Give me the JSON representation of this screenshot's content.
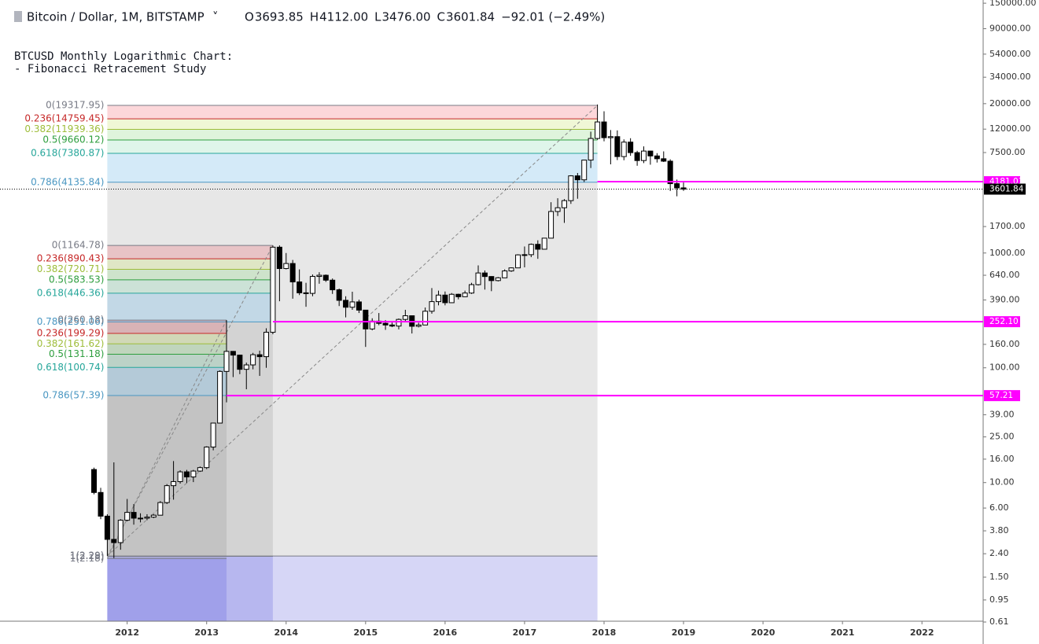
{
  "header": {
    "symbol": "Bitcoin / Dollar, 1M, BITSTAMP",
    "ohlc": [
      {
        "key": "O",
        "value": "3693.85"
      },
      {
        "key": "H",
        "value": "4112.00"
      },
      {
        "key": "L",
        "value": "3476.00"
      },
      {
        "key": "C",
        "value": "3601.84"
      }
    ],
    "change": "−92.01 (−2.49%)"
  },
  "annotation": [
    "BTCUSD Monthly Logarithmic Chart:",
    "- Fibonacci Retracement Study"
  ],
  "chart_data": {
    "type": "candlestick",
    "log_scale": true,
    "xlim": [
      2010.4,
      2022.77
    ],
    "xticks": [
      2012,
      2013,
      2014,
      2015,
      2016,
      2017,
      2018,
      2019,
      2020,
      2021,
      2022
    ],
    "ylim": [
      0.62,
      160000
    ],
    "yticks": [
      {
        "value": 150000,
        "label": "150000.00"
      },
      {
        "value": 90000,
        "label": "90000.00"
      },
      {
        "value": 54000,
        "label": "54000.00"
      },
      {
        "value": 34000,
        "label": "34000.00"
      },
      {
        "value": 20000,
        "label": "20000.00"
      },
      {
        "value": 12000,
        "label": "12000.00"
      },
      {
        "value": 7500,
        "label": "7500.00"
      },
      {
        "value": 1700,
        "label": "1700.00"
      },
      {
        "value": 1000,
        "label": "1000.00"
      },
      {
        "value": 640,
        "label": "640.00"
      },
      {
        "value": 390,
        "label": "390.00"
      },
      {
        "value": 160,
        "label": "160.00"
      },
      {
        "value": 100,
        "label": "100.00"
      },
      {
        "value": 39,
        "label": "39.00"
      },
      {
        "value": 25,
        "label": "25.00"
      },
      {
        "value": 16,
        "label": "16.00"
      },
      {
        "value": 10,
        "label": "10.00"
      },
      {
        "value": 6,
        "label": "6.00"
      },
      {
        "value": 3.8,
        "label": "3.80"
      },
      {
        "value": 2.4,
        "label": "2.40"
      },
      {
        "value": 1.5,
        "label": "1.50"
      },
      {
        "value": 0.95,
        "label": "0.95"
      },
      {
        "value": 0.61,
        "label": "0.61"
      }
    ],
    "up_color": "#ffffff",
    "down_color": "#000000",
    "outline_color": "#000000",
    "x": [
      2011.583,
      2011.667,
      2011.75,
      2011.833,
      2011.917,
      2012,
      2012.083,
      2012.167,
      2012.25,
      2012.333,
      2012.417,
      2012.5,
      2012.583,
      2012.667,
      2012.75,
      2012.833,
      2012.917,
      2013,
      2013.083,
      2013.167,
      2013.25,
      2013.333,
      2013.417,
      2013.5,
      2013.583,
      2013.667,
      2013.75,
      2013.833,
      2013.917,
      2014,
      2014.083,
      2014.167,
      2014.25,
      2014.333,
      2014.417,
      2014.5,
      2014.583,
      2014.667,
      2014.75,
      2014.833,
      2014.917,
      2015,
      2015.083,
      2015.167,
      2015.25,
      2015.333,
      2015.417,
      2015.5,
      2015.583,
      2015.667,
      2015.75,
      2015.833,
      2015.917,
      2016,
      2016.083,
      2016.167,
      2016.25,
      2016.333,
      2016.417,
      2016.5,
      2016.583,
      2016.667,
      2016.75,
      2016.833,
      2016.917,
      2017,
      2017.083,
      2017.167,
      2017.25,
      2017.333,
      2017.417,
      2017.5,
      2017.583,
      2017.667,
      2017.75,
      2017.833,
      2017.917,
      2018,
      2018.083,
      2018.167,
      2018.25,
      2018.333,
      2018.417,
      2018.5,
      2018.583,
      2018.667,
      2018.75,
      2018.833,
      2018.917,
      2019
    ],
    "open": [
      13,
      8.2,
      5.1,
      3.2,
      3.0,
      4.7,
      5.5,
      4.9,
      4.9,
      5.0,
      5.2,
      6.7,
      9.4,
      10.2,
      12.4,
      11.2,
      12.6,
      13.5,
      20.4,
      33,
      93,
      139,
      129,
      97,
      106,
      130,
      125,
      204,
      1124,
      732,
      810,
      560,
      450,
      445,
      625,
      640,
      580,
      478,
      387,
      337,
      375,
      318,
      218,
      255,
      244,
      236,
      231,
      264,
      284,
      230,
      236,
      311,
      377,
      430,
      369,
      437,
      416,
      448,
      530,
      670,
      624,
      575,
      608,
      698,
      742,
      963,
      967,
      1190,
      1079,
      1347,
      2300,
      2480,
      2860,
      4700,
      4340,
      6450,
      9950,
      13860,
      10110,
      10320,
      6920,
      9250,
      7490,
      6390,
      7730,
      7010,
      6625,
      6310,
      4020,
      3693.85
    ],
    "high": [
      13.5,
      9,
      5.3,
      15,
      4.8,
      7.2,
      6.5,
      5.4,
      5.3,
      5.3,
      6.9,
      9.7,
      15.4,
      12.8,
      12.9,
      12.9,
      13.8,
      20.7,
      33.2,
      95,
      260,
      140,
      130,
      111,
      135,
      141,
      221,
      1163,
      1165,
      1000,
      870,
      720,
      550,
      650,
      680,
      650,
      600,
      490,
      420,
      460,
      392,
      320,
      270,
      300,
      260,
      248,
      269,
      320,
      286,
      247,
      335,
      495,
      470,
      462,
      448,
      442,
      470,
      550,
      780,
      705,
      627,
      618,
      720,
      750,
      975,
      1140,
      1210,
      1290,
      1350,
      2770,
      3000,
      2950,
      4760,
      4980,
      6470,
      11400,
      19666,
      17170,
      11790,
      11700,
      9770,
      10000,
      7770,
      8490,
      7760,
      7410,
      7680,
      6550,
      4360,
      4112
    ],
    "low": [
      7.9,
      4.8,
      2.3,
      2.2,
      2.6,
      4.6,
      4.3,
      4.5,
      4.7,
      4.9,
      5.2,
      6.5,
      7.1,
      9.8,
      9.9,
      10.1,
      12.4,
      13.1,
      19.1,
      33,
      50,
      83,
      88,
      65,
      97,
      85,
      100,
      196,
      380,
      720,
      400,
      430,
      340,
      420,
      540,
      560,
      440,
      345,
      275,
      320,
      300,
      152,
      212,
      235,
      214,
      226,
      216,
      253,
      199,
      225,
      236,
      296,
      350,
      350,
      366,
      395,
      414,
      440,
      521,
      480,
      465,
      565,
      606,
      685,
      742,
      750,
      920,
      890,
      1075,
      1350,
      2100,
      1830,
      2680,
      2970,
      4150,
      5500,
      9700,
      9400,
      5920,
      6450,
      6430,
      7030,
      5755,
      6070,
      5880,
      6140,
      6205,
      3470,
      3120,
      3476
    ],
    "close": [
      8.2,
      5.1,
      3.2,
      3.0,
      4.7,
      5.5,
      4.9,
      4.9,
      5.0,
      5.2,
      6.7,
      9.4,
      10.2,
      12.4,
      11.2,
      12.6,
      13.5,
      20.4,
      33,
      93,
      139,
      129,
      97,
      106,
      130,
      125,
      204,
      1124,
      732,
      810,
      560,
      450,
      445,
      625,
      640,
      580,
      478,
      387,
      337,
      375,
      318,
      218,
      255,
      244,
      236,
      231,
      264,
      284,
      230,
      236,
      311,
      377,
      430,
      369,
      437,
      416,
      448,
      530,
      670,
      624,
      575,
      608,
      698,
      742,
      963,
      967,
      1190,
      1079,
      1347,
      2300,
      2480,
      2860,
      4700,
      4340,
      6450,
      9950,
      13860,
      10110,
      10320,
      6920,
      9250,
      7490,
      6390,
      7730,
      7010,
      6625,
      6310,
      4020,
      3693.85,
      3601.84
    ],
    "fib_level_colors": [
      "#787b86",
      "#c62828",
      "#9ebd3a",
      "#2e9e3e",
      "#26a69a",
      "#4a97c2",
      "#787b86"
    ],
    "fib_zone_colors": [
      "rgba(242,54,69,0.2)",
      "rgba(205,230,120,0.3)",
      "rgba(150,220,140,0.3)",
      "rgba(110,210,160,0.22)",
      "rgba(100,180,230,0.28)",
      "rgba(120,120,120,0.18)"
    ],
    "fib_extension_color": "rgba(90,90,220,0.25)",
    "fibs": [
      {
        "x_start": 2011.75,
        "x_end": 2017.917,
        "levels": [
          {
            "value": 19317.95,
            "label": "0(19317.95)"
          },
          {
            "value": 14759.45,
            "label": "0.236(14759.45)"
          },
          {
            "value": 11939.36,
            "label": "0.382(11939.36)"
          },
          {
            "value": 9660.12,
            "label": "0.5(9660.12)"
          },
          {
            "value": 7380.87,
            "label": "0.618(7380.87)"
          },
          {
            "value": 4135.84,
            "label": "0.786(4135.84)"
          },
          {
            "value": 2.29,
            "label": "1(2.29)"
          }
        ]
      },
      {
        "x_start": 2011.75,
        "x_end": 2013.833,
        "levels": [
          {
            "value": 1164.78,
            "label": "0(1164.78)"
          },
          {
            "value": 890.43,
            "label": "0.236(890.43)"
          },
          {
            "value": 720.71,
            "label": "0.382(720.71)"
          },
          {
            "value": 583.53,
            "label": "0.5(583.53)"
          },
          {
            "value": 446.36,
            "label": "0.618(446.36)"
          },
          {
            "value": 251.06,
            "label": "0.786(251.06)"
          },
          {
            "value": 2.28,
            "label": "1(2.28)"
          }
        ]
      },
      {
        "x_start": 2011.75,
        "x_end": 2013.25,
        "levels": [
          {
            "value": 260.18,
            "label": "0(260.18)"
          },
          {
            "value": 199.29,
            "label": "0.236(199.29)"
          },
          {
            "value": 161.62,
            "label": "0.382(161.62)"
          },
          {
            "value": 131.18,
            "label": "0.5(131.18)"
          },
          {
            "value": 100.74,
            "label": "0.618(100.74)"
          },
          {
            "value": 57.39,
            "label": "0.786(57.39)"
          },
          {
            "value": 2.18,
            "label": "1(2.18)"
          }
        ]
      }
    ],
    "price_lines": [
      {
        "value": 4181.03,
        "x_start": 2017.917
      },
      {
        "value": {
          "value": 252.1,
          "label": "252.10"
        },
        "x_start": 2013.833
      },
      {
        "value": 57.21,
        "x_start": 2013.25
      }
    ],
    "price_line_color": "#ff00ff",
    "last_price": 3601.84
  }
}
